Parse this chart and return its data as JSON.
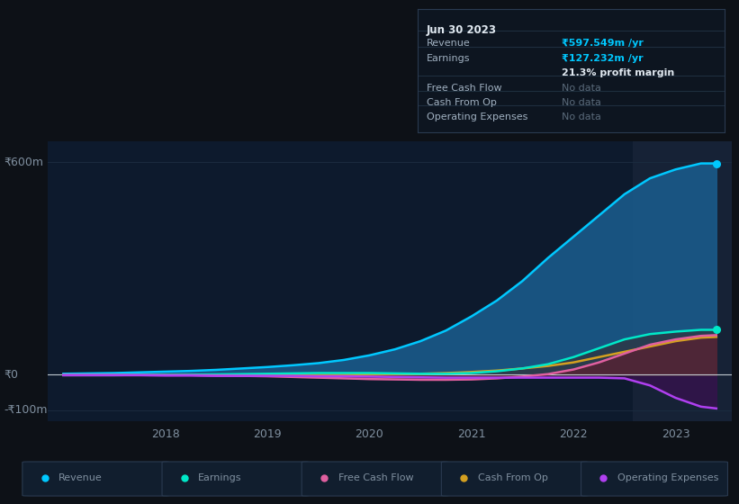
{
  "bg_color": "#0d1117",
  "plot_bg_color": "#0d1a2d",
  "highlight_bg_color": "#162236",
  "grid_color": "#1a2a3e",
  "years": [
    2017.0,
    2017.25,
    2017.5,
    2017.75,
    2018.0,
    2018.25,
    2018.5,
    2018.75,
    2019.0,
    2019.25,
    2019.5,
    2019.75,
    2020.0,
    2020.25,
    2020.5,
    2020.75,
    2021.0,
    2021.25,
    2021.5,
    2021.75,
    2022.0,
    2022.25,
    2022.5,
    2022.75,
    2023.0,
    2023.25,
    2023.4
  ],
  "revenue": [
    3,
    4,
    5,
    7,
    9,
    11,
    14,
    18,
    22,
    27,
    33,
    42,
    55,
    72,
    95,
    125,
    165,
    210,
    265,
    330,
    390,
    450,
    510,
    555,
    580,
    597,
    597
  ],
  "earnings": [
    -1,
    -1,
    -1,
    -0.5,
    0,
    0.5,
    1,
    2,
    3,
    4,
    5,
    5,
    5,
    4,
    3,
    3,
    5,
    10,
    18,
    30,
    50,
    75,
    100,
    115,
    122,
    127,
    127
  ],
  "free_cash_flow": [
    -1,
    -1,
    -1,
    -1,
    -1,
    -1,
    -2,
    -3,
    -4,
    -6,
    -8,
    -10,
    -12,
    -13,
    -14,
    -14,
    -13,
    -10,
    -5,
    2,
    15,
    35,
    60,
    85,
    100,
    110,
    112
  ],
  "cash_from_op": [
    -0.5,
    -0.5,
    -0.5,
    -0.5,
    -0.5,
    -0.5,
    -0.5,
    -0.5,
    -0.5,
    -0.5,
    -0.5,
    0,
    1,
    2,
    3,
    5,
    8,
    12,
    18,
    25,
    35,
    50,
    65,
    80,
    95,
    105,
    107
  ],
  "operating_expenses": [
    -1,
    -1,
    -1,
    -1,
    -2,
    -2,
    -3,
    -3,
    -3,
    -3,
    -4,
    -4,
    -5,
    -6,
    -7,
    -8,
    -8,
    -8,
    -8,
    -8,
    -8,
    -8,
    -10,
    -30,
    -65,
    -90,
    -95
  ],
  "ylim": [
    -130,
    660
  ],
  "ytick_positions": [
    -100,
    0,
    600
  ],
  "ytick_labels": [
    "-₹100m",
    "₹0",
    "₹600m"
  ],
  "xticks": [
    2018,
    2019,
    2020,
    2021,
    2022,
    2023
  ],
  "xmin": 2016.85,
  "xmax": 2023.55,
  "highlight_start": 2022.58,
  "highlight_end": 2023.55,
  "revenue_color": "#00c8ff",
  "revenue_fill": "#1a5a8a",
  "earnings_color": "#00e8c8",
  "free_cash_flow_color": "#e060a0",
  "cash_from_op_color": "#d4a020",
  "operating_expenses_color": "#b040f0",
  "legend_items": [
    "Revenue",
    "Earnings",
    "Free Cash Flow",
    "Cash From Op",
    "Operating Expenses"
  ],
  "legend_colors": [
    "#00c8ff",
    "#00e8c8",
    "#e060a0",
    "#d4a020",
    "#b040f0"
  ],
  "tooltip_title": "Jun 30 2023",
  "tooltip_revenue_label": "Revenue",
  "tooltip_revenue_value": "₹597.549m /yr",
  "tooltip_earnings_label": "Earnings",
  "tooltip_earnings_value": "₹127.232m /yr",
  "tooltip_margin": "21.3% profit margin",
  "tooltip_fcf_label": "Free Cash Flow",
  "tooltip_cfo_label": "Cash From Op",
  "tooltip_opex_label": "Operating Expenses",
  "tooltip_nodata": "No data"
}
